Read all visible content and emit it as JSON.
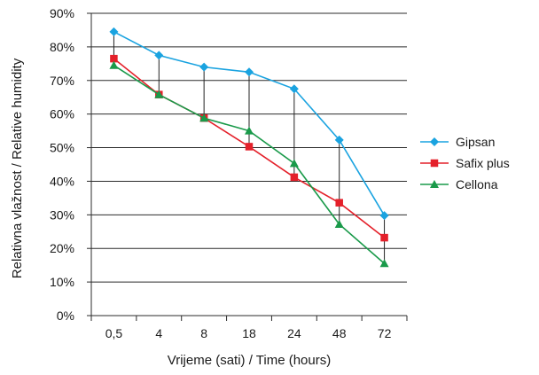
{
  "chart_data": {
    "type": "line",
    "title": "",
    "xlabel": "Vrijeme (sati) / Time (hours)",
    "ylabel": "Relativna vlažnost / Relative humidity",
    "categories": [
      "0,5",
      "4",
      "8",
      "18",
      "24",
      "48",
      "72"
    ],
    "y_ticks": [
      "0%",
      "10%",
      "20%",
      "30%",
      "40%",
      "50%",
      "60%",
      "70%",
      "80%",
      "90%"
    ],
    "ylim": [
      0,
      90
    ],
    "y_unit": "%",
    "grid": "horizontal",
    "legend_position": "right",
    "series": [
      {
        "name": "Gipsan",
        "color": "#1aa3e0",
        "marker": "diamond",
        "values": [
          84.5,
          77.5,
          74,
          72.5,
          67.5,
          52.3,
          29.8
        ]
      },
      {
        "name": "Safix plus",
        "color": "#e4202a",
        "marker": "square",
        "values": [
          76.5,
          65.8,
          58.8,
          50.3,
          41.2,
          33.6,
          23.2
        ]
      },
      {
        "name": "Cellona",
        "color": "#1a9a4a",
        "marker": "triangle",
        "values": [
          74.5,
          65.8,
          58.8,
          55,
          45.3,
          27.2,
          15.5
        ]
      }
    ],
    "drop_lines": true
  }
}
